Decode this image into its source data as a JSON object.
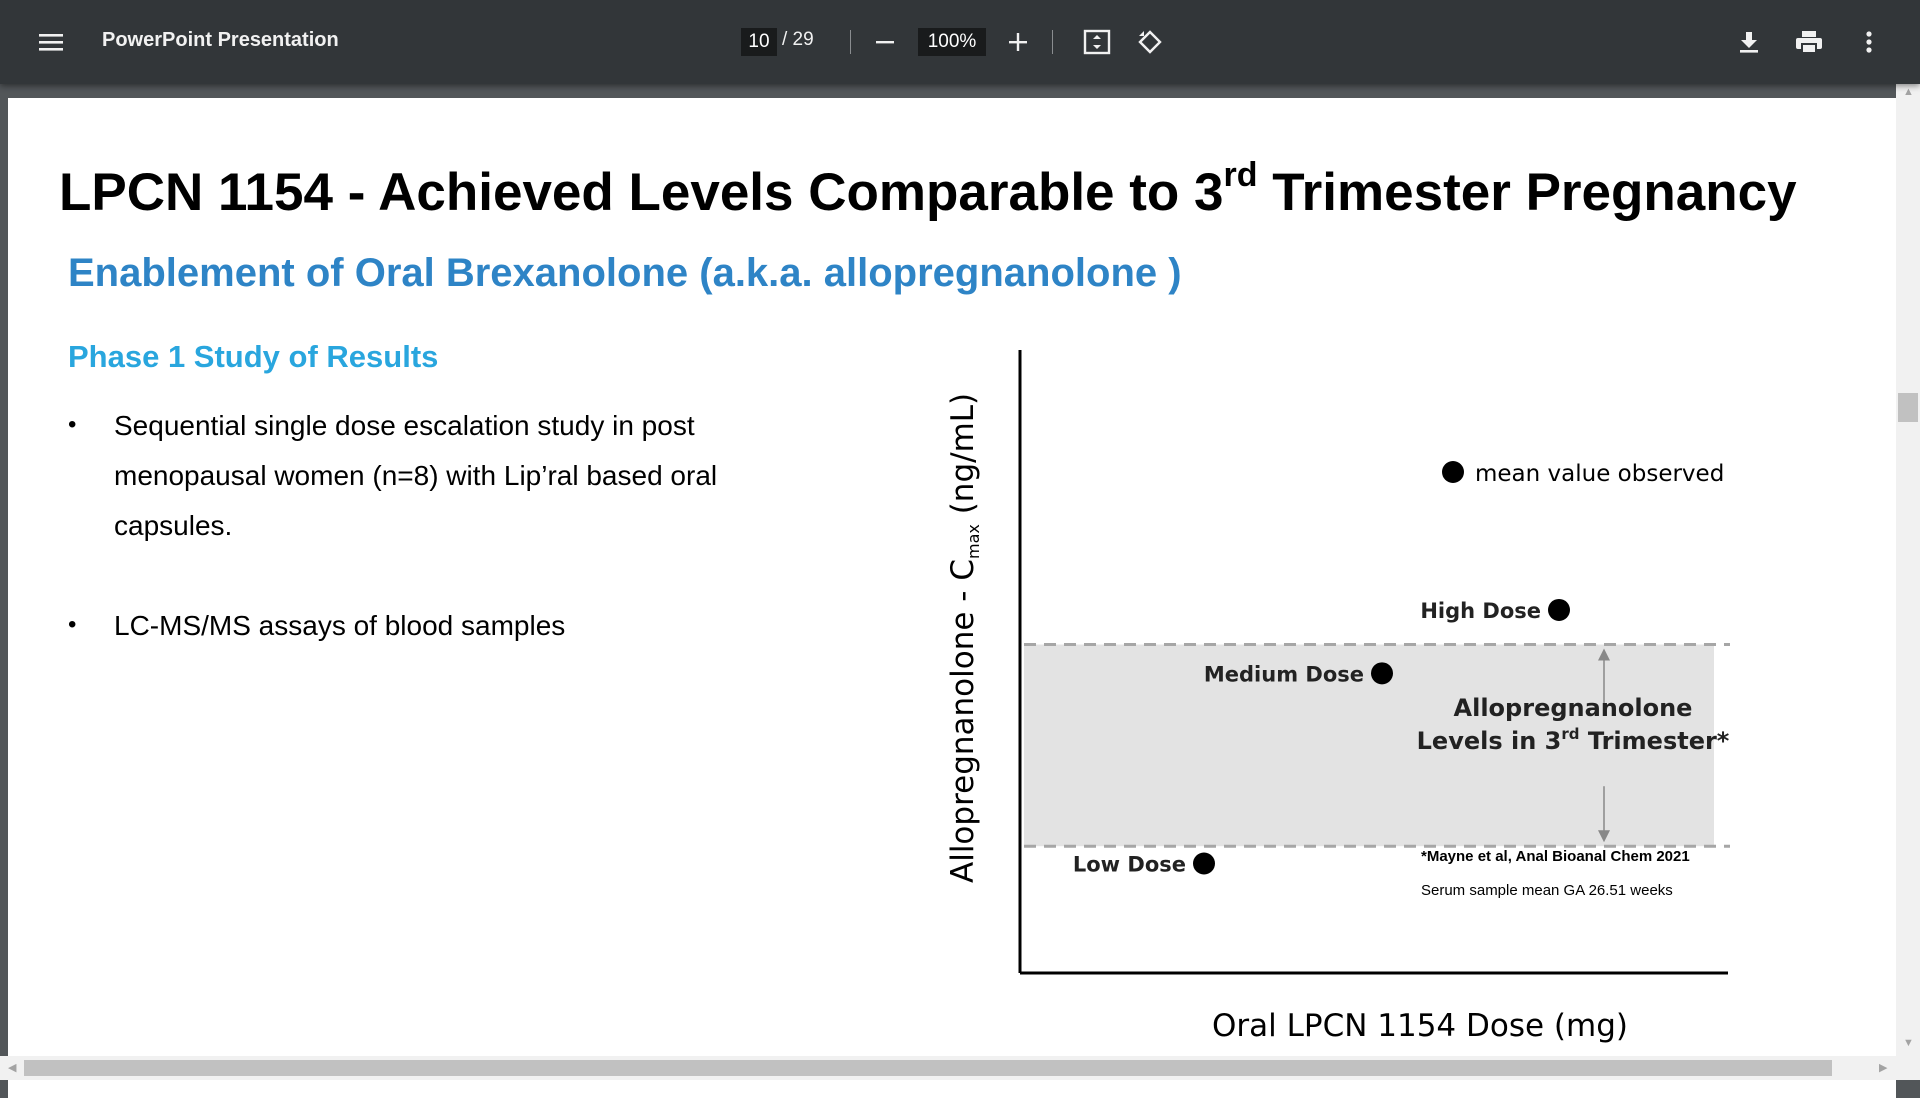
{
  "toolbar": {
    "menu_icon": "hamburger-menu-icon",
    "title": "PowerPoint Presentation",
    "page_current": "10",
    "page_total": "/ 29",
    "zoom": "100%",
    "icons": [
      "zoom-out-icon",
      "zoom-in-icon",
      "fit-page-icon",
      "rotate-icon",
      "download-icon",
      "print-icon",
      "more-vert-icon"
    ]
  },
  "slide": {
    "title_main": "LPCN 1154 - Achieved Levels Comparable to 3",
    "title_sup": "rd",
    "title_end": " Trimester Pregnancy",
    "subtitle": "Enablement of Oral Brexanolone (a.k.a. allopregnanolone )",
    "phase_heading": "Phase 1 Study of  Results",
    "bullets": [
      "Sequential single dose escalation study in post menopausal women (n=8) with Lip’ral based oral capsules.",
      "LC-MS/MS assays of blood samples"
    ]
  },
  "chart_data": {
    "type": "scatter",
    "ylabel": "Allopregnanolone - C",
    "ylabel_sub": "max",
    "ylabel_unit": " (ng/mL)",
    "xlabel": "Oral LPCN 1154 Dose (mg)",
    "legend": "mean value observed",
    "points": [
      {
        "label": "Low Dose",
        "x": 1,
        "y": 0.19
      },
      {
        "label": "Medium Dose",
        "x": 2,
        "y": 0.52
      },
      {
        "label": "High Dose",
        "x": 3,
        "y": 0.63
      }
    ],
    "band": {
      "label_line1": "Allopregnanolone",
      "label_line2": "Levels in 3",
      "label_sup": "rd",
      "label_end": " Trimester*",
      "low": 0.22,
      "high": 0.57
    },
    "footnote1": "*Mayne et al, Anal Bioanal Chem 2021",
    "footnote2": "Serum sample  mean GA 26.51 weeks",
    "colors": {
      "marker": "#000000",
      "band": "#e3e3e3",
      "band_line": "#a6a6a6"
    }
  }
}
